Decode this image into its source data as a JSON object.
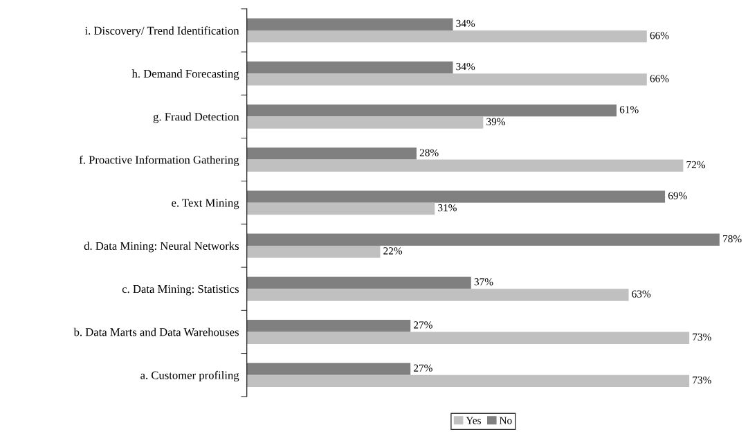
{
  "chart_data": {
    "type": "bar",
    "orientation": "horizontal",
    "categories": [
      "i. Discovery/ Trend Identification",
      "h. Demand Forecasting",
      "g. Fraud Detection",
      "f. Proactive Information Gathering",
      "e. Text Mining",
      "d. Data Mining: Neural Networks",
      "c. Data Mining: Statistics",
      "b. Data Marts and Data Warehouses",
      "a. Customer profiling"
    ],
    "series": [
      {
        "name": "No",
        "color": "#808080",
        "values": [
          34,
          34,
          61,
          28,
          69,
          78,
          37,
          27,
          27
        ],
        "value_labels": [
          "34%",
          "34%",
          "61%",
          "28%",
          "69%",
          "78%",
          "37%",
          "27%",
          "27%"
        ]
      },
      {
        "name": "Yes",
        "color": "#c0c0c0",
        "values": [
          66,
          66,
          39,
          72,
          31,
          22,
          63,
          73,
          73
        ],
        "value_labels": [
          "66%",
          "66%",
          "39%",
          "72%",
          "31%",
          "22%",
          "63%",
          "73%",
          "73%"
        ]
      }
    ],
    "legend": "bottom",
    "grid": false
  }
}
